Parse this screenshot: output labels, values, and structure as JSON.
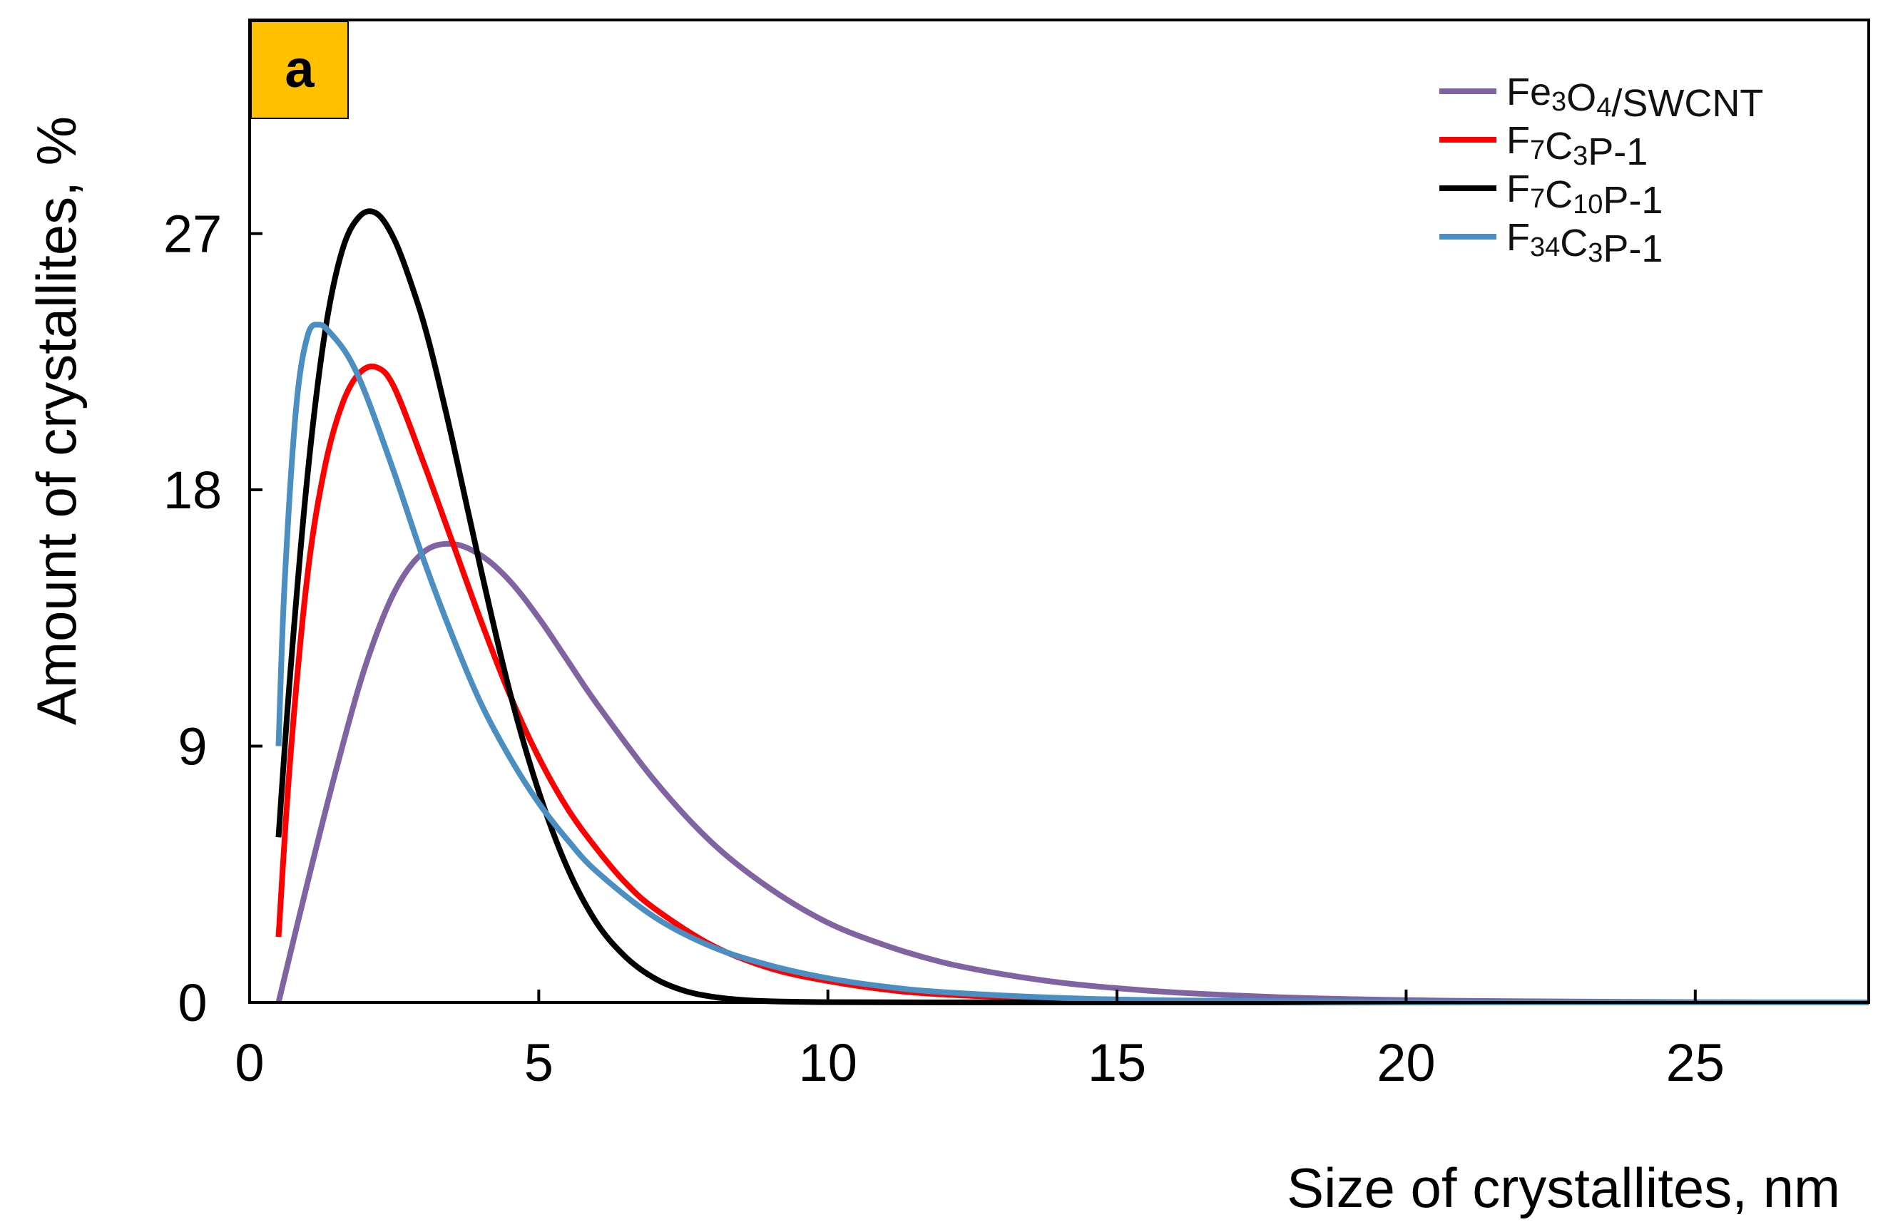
{
  "chart_data": {
    "type": "line",
    "title": "",
    "panel_label": "a",
    "xlabel": "Size of crystallites, nm",
    "ylabel": "Amount of crystallites,  %",
    "xlim": [
      0,
      28
    ],
    "ylim": [
      0,
      34.5
    ],
    "xticks": [
      0,
      5,
      10,
      15,
      20,
      25
    ],
    "yticks": [
      0,
      9,
      18,
      27
    ],
    "grid": false,
    "legend_position": "top-right",
    "series": [
      {
        "name": "Fe3O4/SWCNT",
        "legend": {
          "parts": [
            {
              "t": "Fe"
            },
            {
              "t": "3",
              "sub": true
            },
            {
              "t": "O"
            },
            {
              "t": "4",
              "sub": true
            },
            {
              "t": "/SWCNT"
            }
          ]
        },
        "color": "#8064a2",
        "x": [
          0.5,
          1,
          1.5,
          2,
          2.5,
          3,
          3.5,
          4,
          4.5,
          5,
          5.5,
          6,
          7,
          8,
          9,
          10,
          11,
          12,
          13,
          14,
          15,
          16,
          18,
          20,
          22,
          25,
          28
        ],
        "y": [
          0,
          4.2,
          8.2,
          11.8,
          14.4,
          15.8,
          16.1,
          15.7,
          14.8,
          13.5,
          12.0,
          10.5,
          7.8,
          5.6,
          4.0,
          2.8,
          2.0,
          1.4,
          1.0,
          0.7,
          0.5,
          0.35,
          0.17,
          0.08,
          0.04,
          0.01,
          0
        ]
      },
      {
        "name": "F7C3P-1",
        "legend": {
          "parts": [
            {
              "t": "F"
            },
            {
              "t": "7",
              "sub": true
            },
            {
              "t": "C"
            },
            {
              "t": "3",
              "sub": true
            },
            {
              "t": "P-1"
            }
          ]
        },
        "color": "#ff0000",
        "x": [
          0.5,
          0.7,
          1,
          1.3,
          1.6,
          1.9,
          2.2,
          2.5,
          3,
          3.5,
          4,
          4.5,
          5,
          5.5,
          6,
          6.5,
          7,
          8,
          9,
          10,
          11,
          12,
          14,
          16,
          20,
          25,
          28
        ],
        "y": [
          2.3,
          8.5,
          15.0,
          18.8,
          21.0,
          22.1,
          22.3,
          21.6,
          19.0,
          16.2,
          13.4,
          10.8,
          8.6,
          6.8,
          5.4,
          4.2,
          3.3,
          2.0,
          1.2,
          0.75,
          0.45,
          0.28,
          0.12,
          0.05,
          0.01,
          0,
          0
        ]
      },
      {
        "name": "F7C10P-1",
        "legend": {
          "parts": [
            {
              "t": "F"
            },
            {
              "t": "7",
              "sub": true
            },
            {
              "t": "C"
            },
            {
              "t": "10",
              "sub": true
            },
            {
              "t": "P-1"
            }
          ]
        },
        "color": "#000000",
        "x": [
          0.5,
          0.7,
          1,
          1.3,
          1.6,
          1.9,
          2.2,
          2.5,
          2.8,
          3.1,
          3.5,
          4,
          4.5,
          5,
          5.5,
          6,
          6.5,
          7,
          7.5,
          8,
          8.5,
          9,
          10,
          12,
          15,
          20,
          28
        ],
        "y": [
          5.8,
          11.5,
          18.5,
          23.5,
          26.4,
          27.6,
          27.7,
          26.8,
          25.2,
          23.2,
          19.8,
          15.2,
          10.9,
          7.4,
          4.7,
          2.8,
          1.6,
          0.85,
          0.42,
          0.2,
          0.09,
          0.04,
          0.01,
          0,
          0,
          0,
          0
        ]
      },
      {
        "name": "F34C3P-1",
        "legend": {
          "parts": [
            {
              "t": "F"
            },
            {
              "t": "34",
              "sub": true
            },
            {
              "t": "C"
            },
            {
              "t": "3",
              "sub": true
            },
            {
              "t": "P-1"
            }
          ]
        },
        "color": "#4a8ec2",
        "x": [
          0.5,
          0.6,
          0.8,
          1,
          1.2,
          1.4,
          1.7,
          2,
          2.5,
          3,
          3.5,
          4,
          4.5,
          5,
          5.5,
          6,
          7,
          8,
          9,
          10,
          11,
          12,
          14,
          16,
          20,
          25,
          28
        ],
        "y": [
          9.0,
          14.5,
          20.8,
          23.4,
          23.8,
          23.5,
          22.7,
          21.4,
          18.6,
          15.6,
          12.9,
          10.5,
          8.6,
          7.0,
          5.7,
          4.6,
          3.0,
          1.95,
          1.3,
          0.85,
          0.55,
          0.36,
          0.16,
          0.07,
          0.01,
          0,
          0
        ]
      }
    ]
  }
}
